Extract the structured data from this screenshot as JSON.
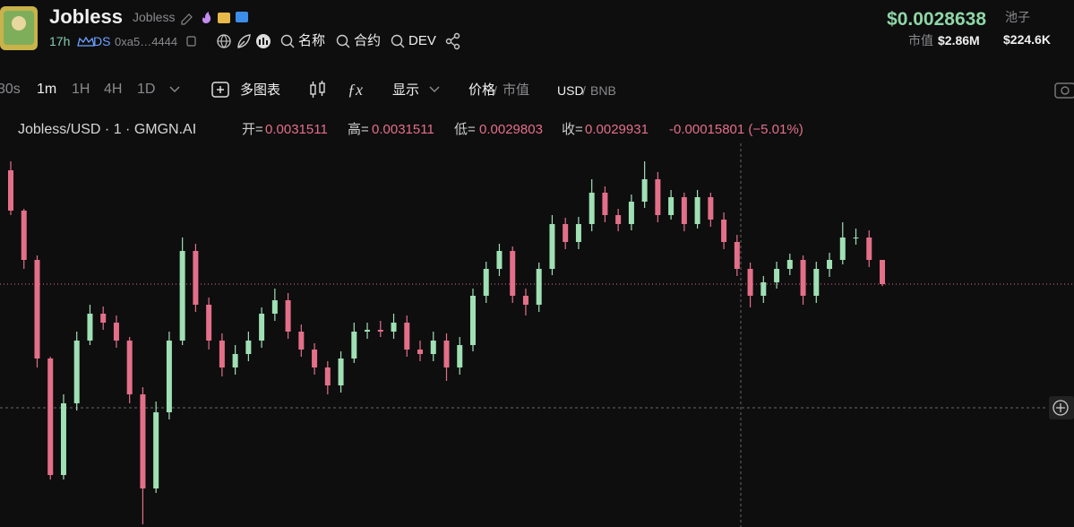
{
  "header": {
    "name": "Jobless",
    "symbol": "Jobless",
    "age": "17h",
    "ds": "DS",
    "address": "0xa5…4444",
    "search_name": "名称",
    "search_contract": "合约",
    "search_dev": "DEV",
    "price": "$0.0028638",
    "pool_label": "池子",
    "mcap_label": "市值",
    "mcap": "$2.86M",
    "pool": "$224.6K"
  },
  "toolbar": {
    "intervals": [
      "30s",
      "1m",
      "1H",
      "4H",
      "1D"
    ],
    "multi_chart": "多图表",
    "display": "显示",
    "price": "价格",
    "mcap": "市值",
    "usd": "USD",
    "bnb": "BNB",
    "separator": "/"
  },
  "legend": {
    "symbol": "Jobless/USD · 1 · GMGN.AI",
    "open": "开=",
    "high": "高=",
    "low": "低=",
    "close": "收=",
    "change": "-0.00015801 (−5.01%)"
  },
  "chart_data": {
    "type": "candlestick",
    "up_color": "#9fe0b4",
    "down_color": "#e46f88",
    "ylim": [
      0.0014078,
      0.0039116
    ],
    "open": [
      0.0037361,
      0.0034729,
      0.0031511,
      0.0025076,
      0.0017471,
      0.0022151,
      0.0026246,
      0.0028001,
      0.0027416,
      0.0026246,
      0.0022736,
      0.0016593,
      0.0021566,
      0.0026246,
      0.0032096,
      0.0028586,
      0.0026246,
      0.0024491,
      0.0025368,
      0.0026246,
      0.0028001,
      0.0028878,
      0.0026831,
      0.0025661,
      0.0024491,
      0.0023321,
      0.0025076,
      0.0026831,
      0.0026948,
      0.0026831,
      0.0027416,
      0.0025661,
      0.0025368,
      0.0026246,
      0.0024491,
      0.0025953,
      0.0029171,
      0.0030926,
      0.0032096,
      0.0029171,
      0.0028586,
      0.0030926,
      0.0033851,
      0.0032681,
      0.0033851,
      0.0035899,
      0.0034436,
      0.0033851,
      0.0035313,
      0.0036776,
      0.0034436,
      0.0035606,
      0.0033851,
      0.0035606,
      0.0034143,
      0.0032681,
      0.0030926,
      0.0029171,
      0.0030049,
      0.0030926,
      0.0031511,
      0.0029171,
      0.0030926,
      0.0031511,
      0.0032973,
      0.0032973,
      0.0031511
    ],
    "high": [
      0.0037946,
      0.0034846,
      0.0031803,
      0.0025193,
      0.0022736,
      0.0026831,
      0.0028586,
      0.0028469,
      0.0027884,
      0.002648,
      0.0023204,
      0.0022268,
      0.0026831,
      0.0032973,
      0.0032564,
      0.0029054,
      0.0026714,
      0.0025953,
      0.0026831,
      0.002841,
      0.0029639,
      0.0029346,
      0.0027299,
      0.002607,
      0.00249,
      0.0025544,
      0.0027416,
      0.0027416,
      0.0027533,
      0.0028001,
      0.0027884,
      0.0026246,
      0.0026831,
      0.0026714,
      0.002648,
      0.0029639,
      0.0031394,
      0.0032564,
      0.0032388,
      0.0029639,
      0.0031335,
      0.0034436,
      0.003426,
      0.0034319,
      0.0036776,
      0.0036308,
      0.0034845,
      0.0035782,
      0.0037946,
      0.0037244,
      0.0036074,
      0.0035899,
      0.0036074,
      0.0035899,
      0.0034612,
      0.0033149,
      0.0031335,
      0.0030458,
      0.0031394,
      0.003192,
      0.0031803,
      0.0031394,
      0.0031979,
      0.0033968,
      0.0033558,
      0.0033441,
      0.0031511
    ],
    "low": [
      0.0034436,
      0.0030926,
      0.0024491,
      0.0017178,
      0.0017178,
      0.0021683,
      0.0025953,
      0.0026948,
      0.0025778,
      0.0022151,
      0.0014253,
      0.0016301,
      0.0021098,
      0.0025953,
      0.0028118,
      0.0025661,
      0.0023906,
      0.0024023,
      0.00249,
      0.0025778,
      0.0027533,
      0.0026363,
      0.0025193,
      0.0024023,
      0.0022736,
      0.0022853,
      0.0024783,
      0.0026363,
      0.002648,
      0.0026363,
      0.0025193,
      0.00249,
      0.00249,
      0.0023613,
      0.0024023,
      0.0025544,
      0.0028703,
      0.0030458,
      0.0028703,
      0.0027884,
      0.0028118,
      0.0030516,
      0.0032213,
      0.0032213,
      0.0033383,
      0.0033968,
      0.0033383,
      0.0033441,
      0.0034904,
      0.0033968,
      0.0034143,
      0.0033383,
      0.0033558,
      0.0033675,
      0.0032213,
      0.0030458,
      0.002841,
      0.0028703,
      0.0029639,
      0.0030516,
      0.0028586,
      0.0028703,
      0.0030399,
      0.0031218,
      0.0032505,
      0.0031043,
      0.0029803
    ],
    "close": [
      0.0034729,
      0.0031511,
      0.0025076,
      0.0017471,
      0.0022151,
      0.0026246,
      0.0028001,
      0.0027416,
      0.0026246,
      0.0022736,
      0.0016593,
      0.0021566,
      0.0026246,
      0.0032096,
      0.0028586,
      0.0026246,
      0.0024491,
      0.0025368,
      0.0026246,
      0.0028001,
      0.0028878,
      0.0026831,
      0.0025661,
      0.0024491,
      0.0023321,
      0.0025076,
      0.0026831,
      0.0026948,
      0.0026831,
      0.0027416,
      0.0025661,
      0.0025368,
      0.0026246,
      0.0024491,
      0.0025953,
      0.0029171,
      0.0030926,
      0.0032096,
      0.0029171,
      0.0028586,
      0.0030926,
      0.0033851,
      0.0032681,
      0.0033851,
      0.0035899,
      0.0034436,
      0.0033851,
      0.0035313,
      0.0036776,
      0.0034436,
      0.0035606,
      0.0033851,
      0.0035606,
      0.0034143,
      0.0032681,
      0.0030926,
      0.0029171,
      0.0030049,
      0.0030926,
      0.0031511,
      0.0029171,
      0.0030926,
      0.0031511,
      0.0032973,
      0.0032973,
      0.0031511,
      0.0029931
    ]
  }
}
